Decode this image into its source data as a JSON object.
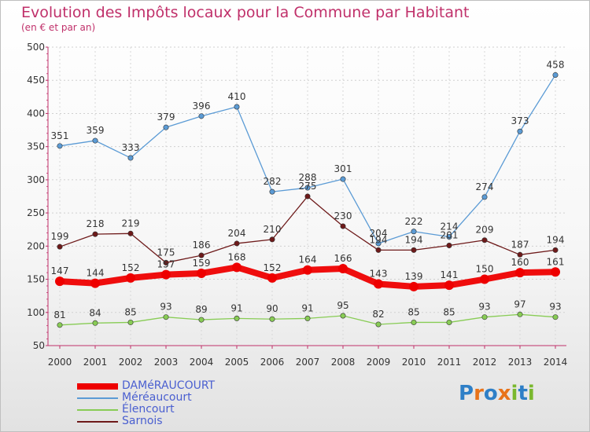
{
  "title": "Evolution des Impôts locaux pour la Commune par Habitant",
  "subtitle": "(en € et par an)",
  "logo_text": "Proxiti",
  "chart_data": {
    "type": "line",
    "title": "Evolution des Impôts locaux pour la Commune par Habitant",
    "subtitle": "(en € et par an)",
    "categories": [
      "2000",
      "2001",
      "2002",
      "2003",
      "2004",
      "2005",
      "2006",
      "2007",
      "2008",
      "2009",
      "2010",
      "2011",
      "2012",
      "2013",
      "2014"
    ],
    "ylim": [
      50,
      500
    ],
    "yticks": [
      50,
      100,
      150,
      200,
      250,
      300,
      350,
      400,
      450,
      500
    ],
    "grid": true,
    "legend_position": "bottom-left",
    "series": [
      {
        "name": "DAMéRAUCOURT",
        "color": "#ee0000",
        "values": [
          147,
          144,
          152,
          157,
          159,
          168,
          152,
          164,
          166,
          143,
          139,
          141,
          150,
          160,
          161
        ],
        "labels": [
          "147",
          "144",
          "152",
          "157",
          "159",
          "168",
          "152",
          "164",
          "166",
          "143",
          "139",
          "141",
          "150",
          "160",
          "161"
        ]
      },
      {
        "name": "Méréaucourt",
        "color": "#5b9bd5",
        "values": [
          351,
          359,
          333,
          379,
          396,
          410,
          282,
          288,
          301,
          204,
          222,
          214,
          274,
          373,
          458
        ],
        "labels": [
          "351",
          "359",
          "333",
          "379",
          "396",
          "410",
          "282",
          "288",
          "301",
          "204",
          "222",
          "214",
          "274",
          "373",
          "458"
        ]
      },
      {
        "name": "Élencourt",
        "color": "#88cc55",
        "values": [
          81,
          84,
          85,
          93,
          89,
          91,
          90,
          91,
          95,
          82,
          85,
          85,
          93,
          97,
          93
        ],
        "labels": [
          "81",
          "84",
          "85",
          "93",
          "89",
          "91",
          "90",
          "91",
          "95",
          "82",
          "85",
          "85",
          "93",
          "97",
          "93"
        ]
      },
      {
        "name": "Sarnois",
        "color": "#6e1a1a",
        "values": [
          199,
          218,
          219,
          175,
          186,
          204,
          210,
          275,
          230,
          194,
          194,
          201,
          209,
          187,
          194
        ],
        "labels": [
          "199",
          "218",
          "219",
          "175",
          "186",
          "204",
          "210",
          "275",
          "230",
          "194",
          "194",
          "201",
          "209",
          "187",
          "194"
        ]
      }
    ]
  }
}
